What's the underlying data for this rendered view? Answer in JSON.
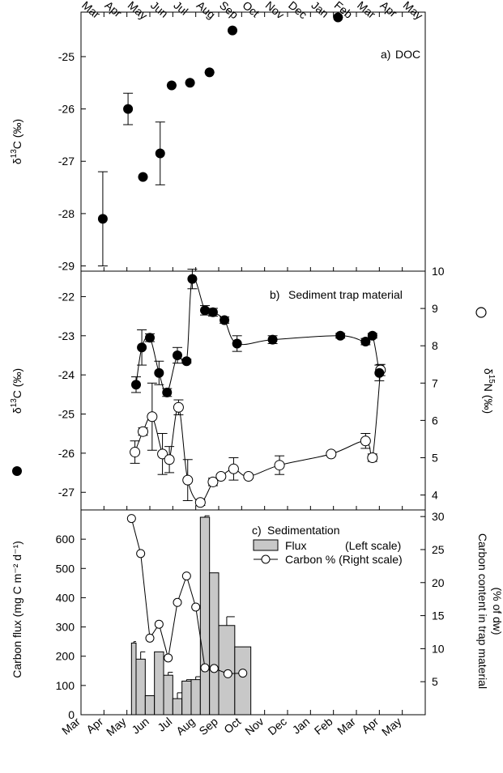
{
  "chart_data": [
    {
      "type": "scatter",
      "panel_label": "a)",
      "title": "DOC",
      "ylabel": "δ13C (‰)",
      "ylim": [
        -29.1,
        -24.15
      ],
      "yticks": [
        -29,
        -28,
        -27,
        -26,
        -25
      ],
      "x": [
        0.95,
        2.05,
        2.7,
        3.45,
        3.95,
        4.75,
        5.6,
        6.6,
        11.2
      ],
      "y": [
        -28.1,
        -26.0,
        -27.3,
        -26.85,
        -25.55,
        -25.5,
        -25.3,
        -24.5,
        -24.25
      ],
      "err": [
        0.9,
        0.3,
        0.05,
        0.6,
        0.05,
        0.05,
        0.05,
        0.05,
        0.05
      ]
    },
    {
      "type": "line",
      "panel_label": "b)",
      "title": "Sediment trap material",
      "ylabel_left": "δ13C (‰)",
      "ylabel_right": "δ15N (‰)",
      "ylim_left": [
        -27.45,
        -21.35
      ],
      "yticks_left": [
        -27,
        -26,
        -25,
        -24,
        -23,
        -22
      ],
      "ylim_right": [
        3.6,
        10.0
      ],
      "yticks_right": [
        4,
        5,
        6,
        7,
        8,
        9,
        10
      ],
      "series": [
        {
          "x": [
            2.4,
            2.65,
            3.0,
            3.4,
            3.75,
            4.2,
            4.6,
            4.85,
            5.4,
            5.75,
            6.25,
            6.8,
            8.35,
            11.3,
            12.4,
            12.7,
            13.0
          ],
          "y": [
            -24.25,
            -23.3,
            -23.05,
            -23.95,
            -24.45,
            -23.5,
            -23.65,
            -21.55,
            -22.35,
            -22.4,
            -22.6,
            -23.2,
            -23.1,
            -23.0,
            -23.15,
            -23.0,
            -23.95
          ],
          "err": [
            0.2,
            0.45,
            0.1,
            0.3,
            0.1,
            0.2,
            0.05,
            0.25,
            0.12,
            0.1,
            0.08,
            0.2,
            0.1,
            0.06,
            0.08,
            0.06,
            0.2
          ]
        },
        {
          "x": [
            2.35,
            2.7,
            3.1,
            3.55,
            3.85,
            4.25,
            4.65,
            5.2,
            5.75,
            6.1,
            6.65,
            7.3,
            8.65,
            10.9,
            12.4,
            12.7,
            13.05
          ],
          "y": [
            5.15,
            5.7,
            6.1,
            5.1,
            4.95,
            6.35,
            4.4,
            3.8,
            4.35,
            4.5,
            4.7,
            4.5,
            4.8,
            5.1,
            5.45,
            5.0,
            7.35
          ],
          "err": [
            0.3,
            0.1,
            0.9,
            0.55,
            0.35,
            0.2,
            0.55,
            0.08,
            0.1,
            0.05,
            0.3,
            0.05,
            0.25,
            0.05,
            0.2,
            0.1,
            0.15
          ]
        }
      ]
    },
    {
      "type": "bar",
      "panel_label": "c)",
      "title": "Sedimentation",
      "ylabel_left": "Carbon flux (mg C m⁻² d⁻¹)",
      "ylabel_right": "Carbon content in trap material",
      "ylabel_right_2": "(% of dw)",
      "ylim_left": [
        0,
        700
      ],
      "yticks_left": [
        0,
        100,
        200,
        300,
        400,
        500,
        600
      ],
      "ylim_right": [
        0,
        31
      ],
      "yticks_right": [
        5,
        10,
        15,
        20,
        25,
        30
      ],
      "xticks": [
        "Mar",
        "Apr",
        "May",
        "Jun",
        "Jul",
        "Aug",
        "Sep",
        "Oct",
        "Nov",
        "Dec",
        "Jan",
        "Feb",
        "Mar",
        "Apr",
        "May"
      ],
      "legend": {
        "flux": "Flux",
        "flux_scale": "(Left scale)",
        "carbon": "Carbon % (Right scale)"
      },
      "bars": [
        {
          "start": 2.2,
          "end": 2.4,
          "value": 245,
          "err": 5
        },
        {
          "start": 2.4,
          "end": 2.8,
          "value": 190,
          "err": 25
        },
        {
          "start": 2.8,
          "end": 3.2,
          "value": 65,
          "err": 0
        },
        {
          "start": 3.2,
          "end": 3.6,
          "value": 215,
          "err": 0
        },
        {
          "start": 3.6,
          "end": 4.0,
          "value": 135,
          "err": 10
        },
        {
          "start": 4.0,
          "end": 4.4,
          "value": 55,
          "err": 20
        },
        {
          "start": 4.4,
          "end": 4.8,
          "value": 115,
          "err": 5
        },
        {
          "start": 4.8,
          "end": 5.2,
          "value": 120,
          "err": 10
        },
        {
          "start": 5.2,
          "end": 5.6,
          "value": 675,
          "err": 5
        },
        {
          "start": 5.6,
          "end": 6.0,
          "value": 485,
          "err": 0
        },
        {
          "start": 6.0,
          "end": 6.7,
          "value": 305,
          "err": 30
        },
        {
          "start": 6.7,
          "end": 7.4,
          "value": 232,
          "err": 0
        }
      ],
      "carbon": {
        "x": [
          2.2,
          2.6,
          3.0,
          3.4,
          3.8,
          4.2,
          4.6,
          5.0,
          5.4,
          5.8,
          6.4,
          7.05
        ],
        "y": [
          29.7,
          24.4,
          11.6,
          13.7,
          8.6,
          17.0,
          21.0,
          16.3,
          7.1,
          7.0,
          6.2,
          6.3
        ]
      }
    }
  ]
}
